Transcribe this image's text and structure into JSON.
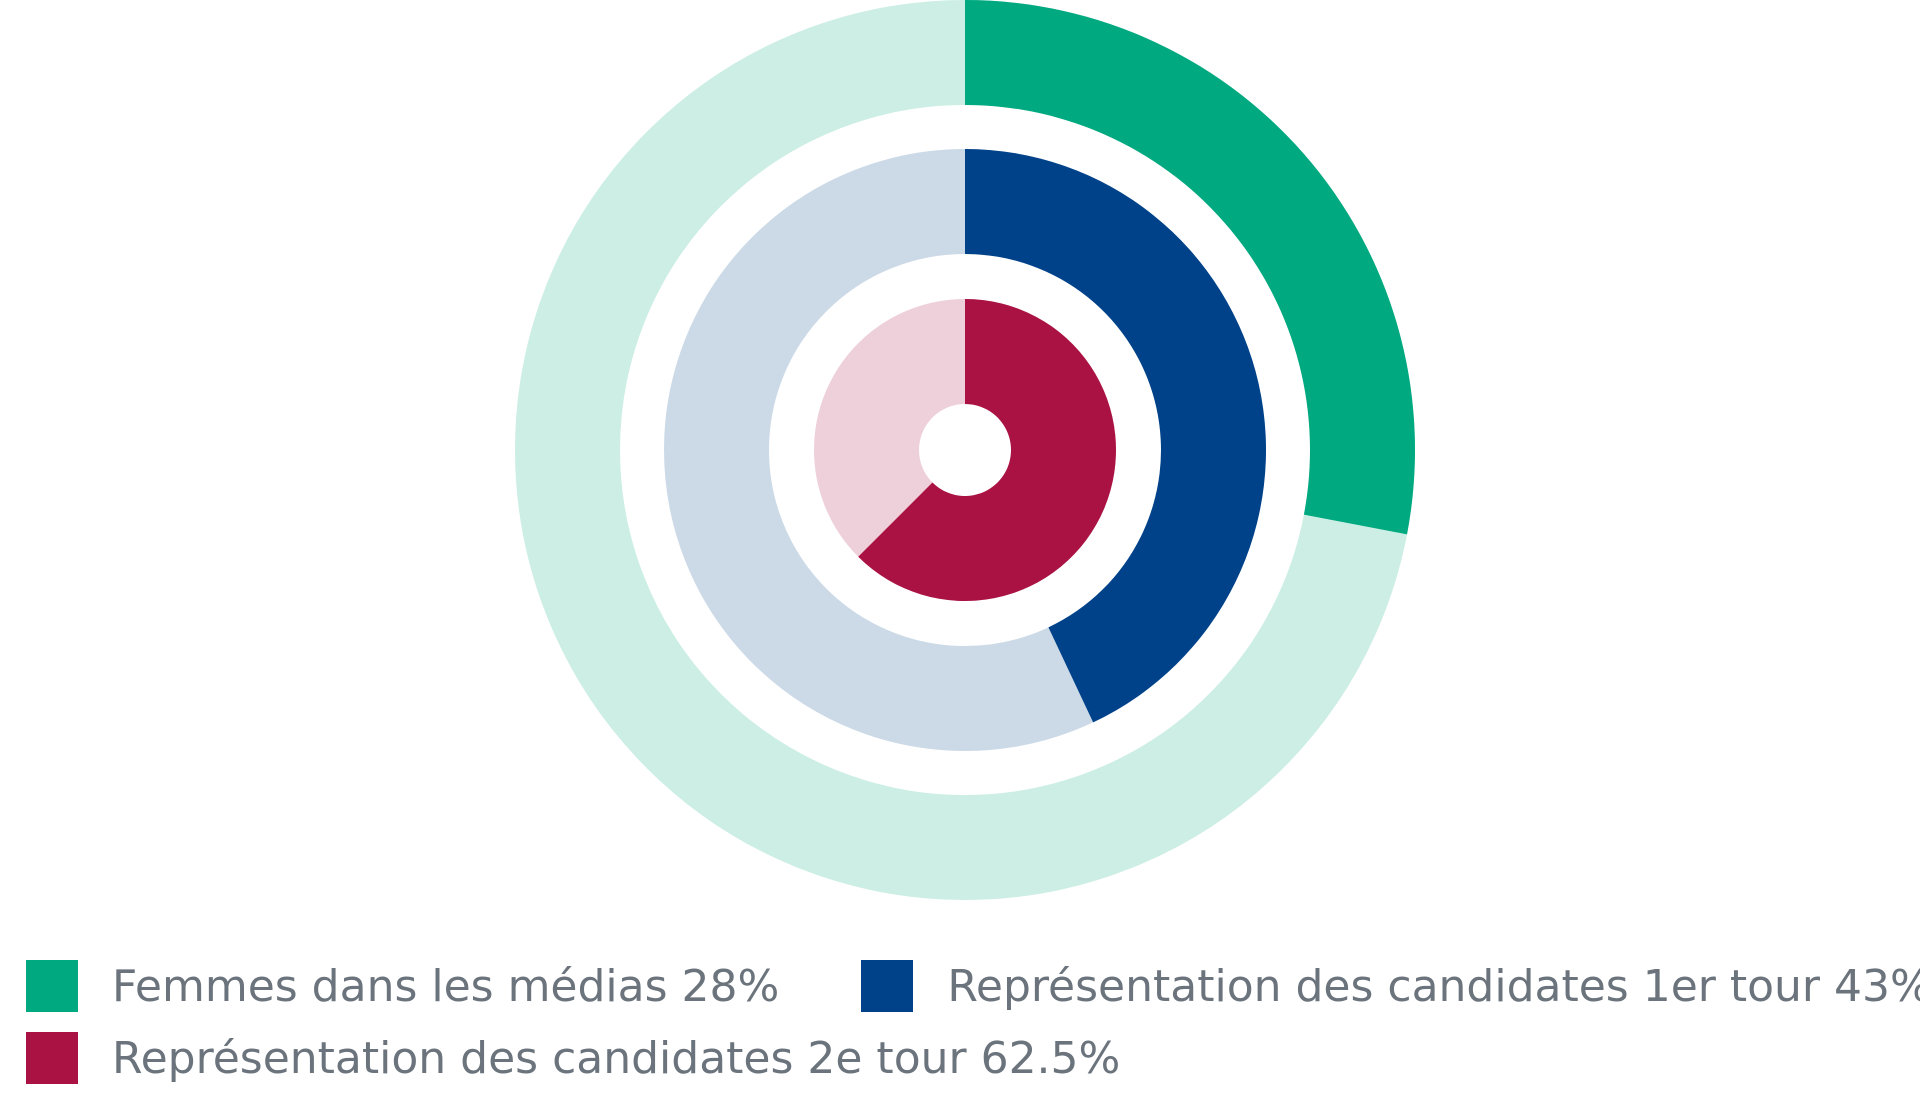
{
  "chart_data": {
    "type": "pie",
    "subtype": "nested-donut",
    "title": "",
    "series": [
      {
        "name": "Femmes dans les médias 28%",
        "value": 28,
        "color": "#00a97f",
        "track_color": "#cceee4"
      },
      {
        "name": "Représentation des candidates 1er tour 43%",
        "value": 43,
        "color": "#004289",
        "track_color": "#ccdae7"
      },
      {
        "name": "Représentation des candidates 2e tour 62.5%",
        "value": 62.5,
        "color": "#aa1244",
        "track_color": "#eed0db"
      }
    ],
    "max": 100,
    "legend_position": "bottom-left"
  }
}
